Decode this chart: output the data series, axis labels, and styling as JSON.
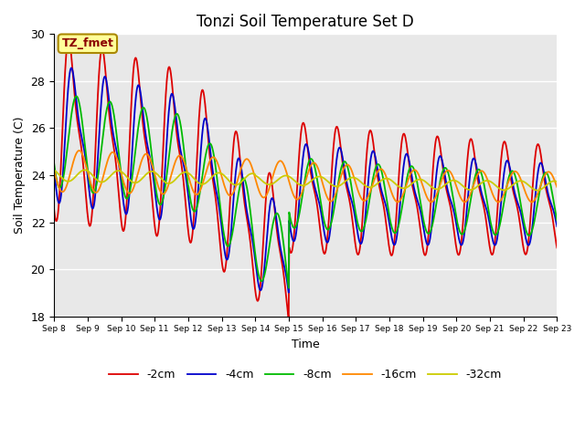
{
  "title": "Tonzi Soil Temperature Set D",
  "xlabel": "Time",
  "ylabel": "Soil Temperature (C)",
  "ylim": [
    18,
    30
  ],
  "xlim": [
    0,
    15
  ],
  "x_tick_labels": [
    "Sep 8",
    "Sep 9",
    "Sep 10",
    "Sep 11",
    "Sep 12",
    "Sep 13",
    "Sep 14",
    "Sep 15",
    "Sep 16",
    "Sep 17",
    "Sep 18",
    "Sep 19",
    "Sep 20",
    "Sep 21",
    "Sep 22",
    "Sep 23"
  ],
  "annotation_text": "TZ_fmet",
  "annotation_bg": "#FFFF99",
  "annotation_border": "#AA8800",
  "colors": {
    "-2cm": "#DD0000",
    "-4cm": "#0000CC",
    "-8cm": "#00BB00",
    "-16cm": "#FF8800",
    "-32cm": "#CCCC00"
  },
  "background_color": "#E8E8E8",
  "title_fontsize": 12,
  "legend_fontsize": 9,
  "linewidth": 1.3
}
